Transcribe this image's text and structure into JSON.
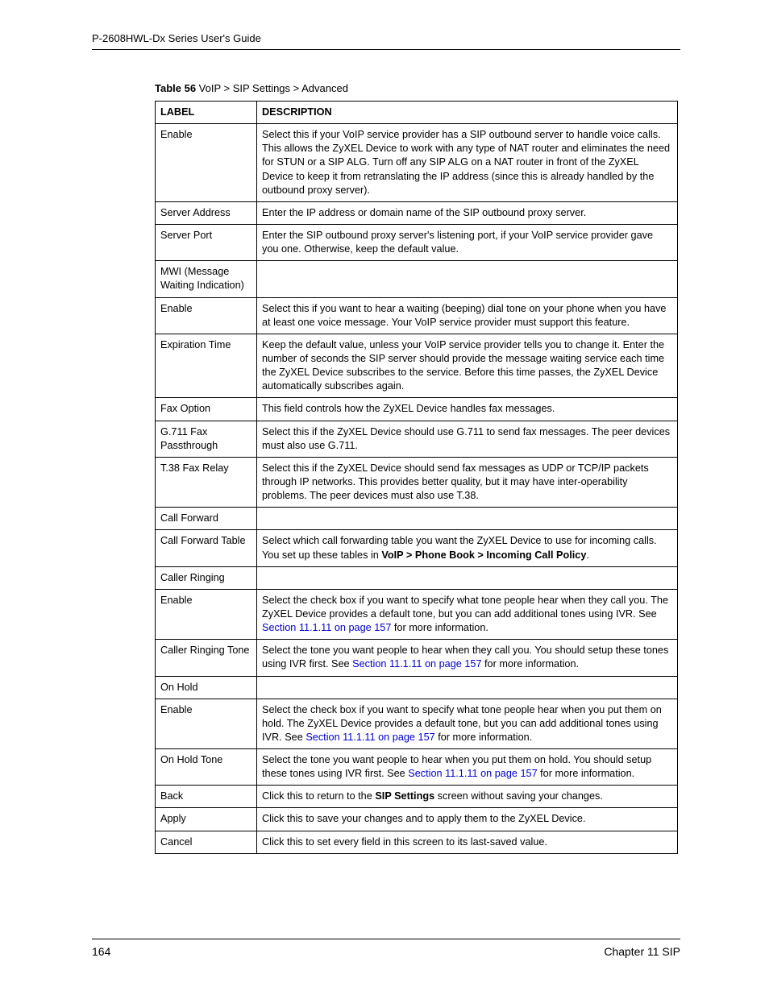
{
  "header": {
    "title": "P-2608HWL-Dx Series User's Guide"
  },
  "caption": {
    "prefix": "Table 56",
    "text": "   VoIP > SIP Settings > Advanced"
  },
  "table": {
    "headers": {
      "label": "LABEL",
      "description": "DESCRIPTION"
    },
    "rows": [
      {
        "label": "Enable",
        "desc": [
          {
            "text": "Select this if your VoIP service provider has a SIP outbound server to handle voice calls. This allows the ZyXEL Device to work with any type of NAT router and eliminates the need for STUN or a SIP ALG. Turn off any SIP ALG on a NAT router in front of the ZyXEL Device to keep it from retranslating the IP address (since this is already handled by the outbound proxy server)."
          }
        ]
      },
      {
        "label": "Server Address",
        "desc": [
          {
            "text": "Enter the IP address or domain name of the SIP outbound proxy server."
          }
        ]
      },
      {
        "label": "Server Port",
        "desc": [
          {
            "text": "Enter the SIP outbound proxy server's listening port, if your VoIP service provider gave you one. Otherwise, keep the default value."
          }
        ]
      },
      {
        "label": "MWI (Message Waiting Indication)",
        "desc": []
      },
      {
        "label": "Enable",
        "desc": [
          {
            "text": "Select this if you want to hear a waiting (beeping) dial tone on your phone when you have at least one voice message. Your VoIP service provider must support this feature."
          }
        ]
      },
      {
        "label": "Expiration Time",
        "desc": [
          {
            "text": "Keep the default value, unless your VoIP service provider tells you to change it. Enter the number of seconds the SIP server should provide the message waiting service each time the ZyXEL Device subscribes to the service. Before this time passes, the ZyXEL Device automatically subscribes again."
          }
        ]
      },
      {
        "label": "Fax Option",
        "desc": [
          {
            "text": "This field controls how the ZyXEL Device handles fax messages."
          }
        ]
      },
      {
        "label": "G.711 Fax Passthrough",
        "desc": [
          {
            "text": "Select this if the ZyXEL Device should use G.711 to send fax messages. The peer devices must also use G.711."
          }
        ]
      },
      {
        "label": "T.38 Fax Relay",
        "desc": [
          {
            "text": "Select this if the ZyXEL Device should send fax messages as UDP or TCP/IP packets through IP networks. This provides better quality, but it may have inter-operability problems. The peer devices must also use T.38."
          }
        ]
      },
      {
        "label": "Call Forward",
        "desc": []
      },
      {
        "label": "Call Forward Table",
        "desc": [
          {
            "text": "Select which call forwarding table you want the ZyXEL Device to use for incoming calls. You set up these tables in "
          },
          {
            "text": "VoIP > Phone Book > Incoming Call Policy",
            "bold": true
          },
          {
            "text": "."
          }
        ]
      },
      {
        "label": "Caller Ringing",
        "desc": []
      },
      {
        "label": "Enable",
        "desc": [
          {
            "text": "Select the check box if you want to specify what tone people hear when they call you. The ZyXEL Device provides a default tone, but you can add additional tones using IVR. See "
          },
          {
            "text": "Section 11.1.11 on page 157",
            "link": true
          },
          {
            "text": " for more information."
          }
        ]
      },
      {
        "label": "Caller Ringing Tone",
        "desc": [
          {
            "text": "Select the tone you want people to hear when they call you. You should setup these tones using IVR first. See "
          },
          {
            "text": "Section 11.1.11 on page 157",
            "link": true
          },
          {
            "text": " for more information."
          }
        ]
      },
      {
        "label": "On Hold",
        "desc": []
      },
      {
        "label": "Enable",
        "desc": [
          {
            "text": "Select the check box if you want to specify what tone people hear when you put them on hold. The ZyXEL Device provides a default tone, but you can add additional tones using IVR. See "
          },
          {
            "text": "Section 11.1.11 on page 157",
            "link": true
          },
          {
            "text": " for more information."
          }
        ]
      },
      {
        "label": "On Hold Tone",
        "desc": [
          {
            "text": "Select the tone you want people to hear when you put them on hold. You should setup these tones using IVR first. See "
          },
          {
            "text": "Section 11.1.11 on page 157",
            "link": true
          },
          {
            "text": " for more information."
          }
        ]
      },
      {
        "label": "Back",
        "desc": [
          {
            "text": "Click this to return to the "
          },
          {
            "text": "SIP Settings",
            "bold": true
          },
          {
            "text": " screen without saving your changes."
          }
        ]
      },
      {
        "label": "Apply",
        "desc": [
          {
            "text": "Click this to save your changes and to apply them to the ZyXEL Device."
          }
        ]
      },
      {
        "label": "Cancel",
        "desc": [
          {
            "text": "Click this to set every field in this screen to its last-saved value."
          }
        ]
      }
    ]
  },
  "footer": {
    "page_number": "164",
    "chapter": "Chapter 11 SIP"
  }
}
